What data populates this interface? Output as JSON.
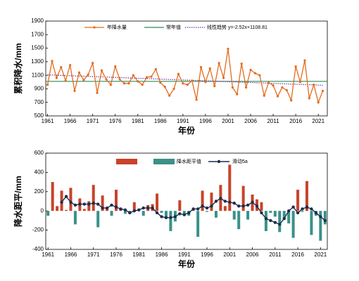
{
  "chart_data": [
    {
      "type": "line",
      "xlabel": "年份",
      "ylabel": "累积降水/mm",
      "x": [
        1961,
        1962,
        1963,
        1964,
        1965,
        1966,
        1967,
        1968,
        1969,
        1970,
        1971,
        1972,
        1973,
        1974,
        1975,
        1976,
        1977,
        1978,
        1979,
        1980,
        1981,
        1982,
        1983,
        1984,
        1985,
        1986,
        1987,
        1988,
        1989,
        1990,
        1991,
        1992,
        1993,
        1994,
        1995,
        1996,
        1997,
        1998,
        1999,
        2000,
        2001,
        2002,
        2003,
        2004,
        2005,
        2006,
        2007,
        2008,
        2009,
        2010,
        2011,
        2012,
        2013,
        2014,
        2015,
        2016,
        2017,
        2018,
        2019,
        2020,
        2021,
        2022
      ],
      "series": [
        {
          "name": "年降水量",
          "color": "#e36c1e",
          "values": [
            960,
            1310,
            1060,
            1220,
            1020,
            1250,
            870,
            1140,
            1030,
            1110,
            1280,
            840,
            1170,
            1040,
            960,
            1230,
            1040,
            980,
            980,
            1100,
            1010,
            960,
            1070,
            1080,
            1190,
            990,
            930,
            800,
            900,
            1120,
            980,
            960,
            1020,
            740,
            1220,
            1000,
            1200,
            940,
            1280,
            1060,
            1490,
            920,
            820,
            1270,
            920,
            1180,
            1130,
            1100,
            800,
            990,
            950,
            790,
            920,
            880,
            730,
            1230,
            1000,
            1320,
            760,
            960,
            700,
            870
          ]
        }
      ],
      "normal": {
        "name": "常年值",
        "color": "#2e8b57",
        "value": 1010
      },
      "trend": {
        "name": "线性趋势 y=-2.52x+1108.81",
        "color": "#7030a0",
        "slope": -2.52,
        "intercept": 1108.81
      },
      "xlim": [
        1960.6,
        2023
      ],
      "xticks": [
        1961,
        1966,
        1971,
        1976,
        1981,
        1986,
        1991,
        1996,
        2001,
        2006,
        2011,
        2016,
        2021
      ],
      "ylim": [
        500,
        1900
      ],
      "yticks": [
        500,
        700,
        900,
        1100,
        1300,
        1500,
        1700,
        1900
      ]
    },
    {
      "type": "bar",
      "xlabel": "年份",
      "ylabel": "降水距平/mm",
      "x": [
        1961,
        1962,
        1963,
        1964,
        1965,
        1966,
        1967,
        1968,
        1969,
        1970,
        1971,
        1972,
        1973,
        1974,
        1975,
        1976,
        1977,
        1978,
        1979,
        1980,
        1981,
        1982,
        1983,
        1984,
        1985,
        1986,
        1987,
        1988,
        1989,
        1990,
        1991,
        1992,
        1993,
        1994,
        1995,
        1996,
        1997,
        1998,
        1999,
        2000,
        2001,
        2002,
        2003,
        2004,
        2005,
        2006,
        2007,
        2008,
        2009,
        2010,
        2011,
        2012,
        2013,
        2014,
        2015,
        2016,
        2017,
        2018,
        2019,
        2020,
        2021,
        2022
      ],
      "series": [
        {
          "name": "降水距平值",
          "color": "#c8432a",
          "negative_color": "#3a9188",
          "values": [
            -50,
            300,
            50,
            210,
            10,
            240,
            -140,
            130,
            20,
            100,
            270,
            -170,
            160,
            30,
            -50,
            220,
            30,
            -30,
            -30,
            90,
            0,
            -50,
            60,
            70,
            180,
            -20,
            -80,
            -210,
            -110,
            110,
            -30,
            -50,
            10,
            -270,
            210,
            -10,
            190,
            -70,
            270,
            50,
            480,
            -90,
            -190,
            260,
            -90,
            170,
            120,
            90,
            -210,
            -20,
            -60,
            -220,
            -90,
            -130,
            -280,
            220,
            -10,
            310,
            -250,
            -50,
            -310,
            -140
          ]
        },
        {
          "name": "滑动5a",
          "color": "#1f2d4d",
          "type": "line",
          "values": [
            null,
            null,
            null,
            90,
            150,
            90,
            60,
            70,
            70,
            70,
            80,
            70,
            30,
            30,
            60,
            40,
            20,
            10,
            -20,
            0,
            10,
            30,
            30,
            30,
            -20,
            -60,
            -70,
            -70,
            -60,
            -30,
            -40,
            -20,
            20,
            20,
            50,
            30,
            50,
            100,
            130,
            100,
            90,
            80,
            50,
            50,
            60,
            90,
            50,
            -20,
            -80,
            -100,
            -120,
            -140,
            -80,
            0,
            40,
            -20,
            20,
            40,
            20,
            -20,
            -60,
            -100
          ]
        }
      ],
      "xlim": [
        1960.5,
        2022.5
      ],
      "xticks": [
        1961,
        1966,
        1971,
        1976,
        1981,
        1986,
        1991,
        1996,
        2001,
        2006,
        2011,
        2016,
        2021
      ],
      "ylim": [
        -400,
        600
      ],
      "yticks": [
        -400,
        -200,
        0,
        200,
        400,
        600
      ]
    }
  ]
}
